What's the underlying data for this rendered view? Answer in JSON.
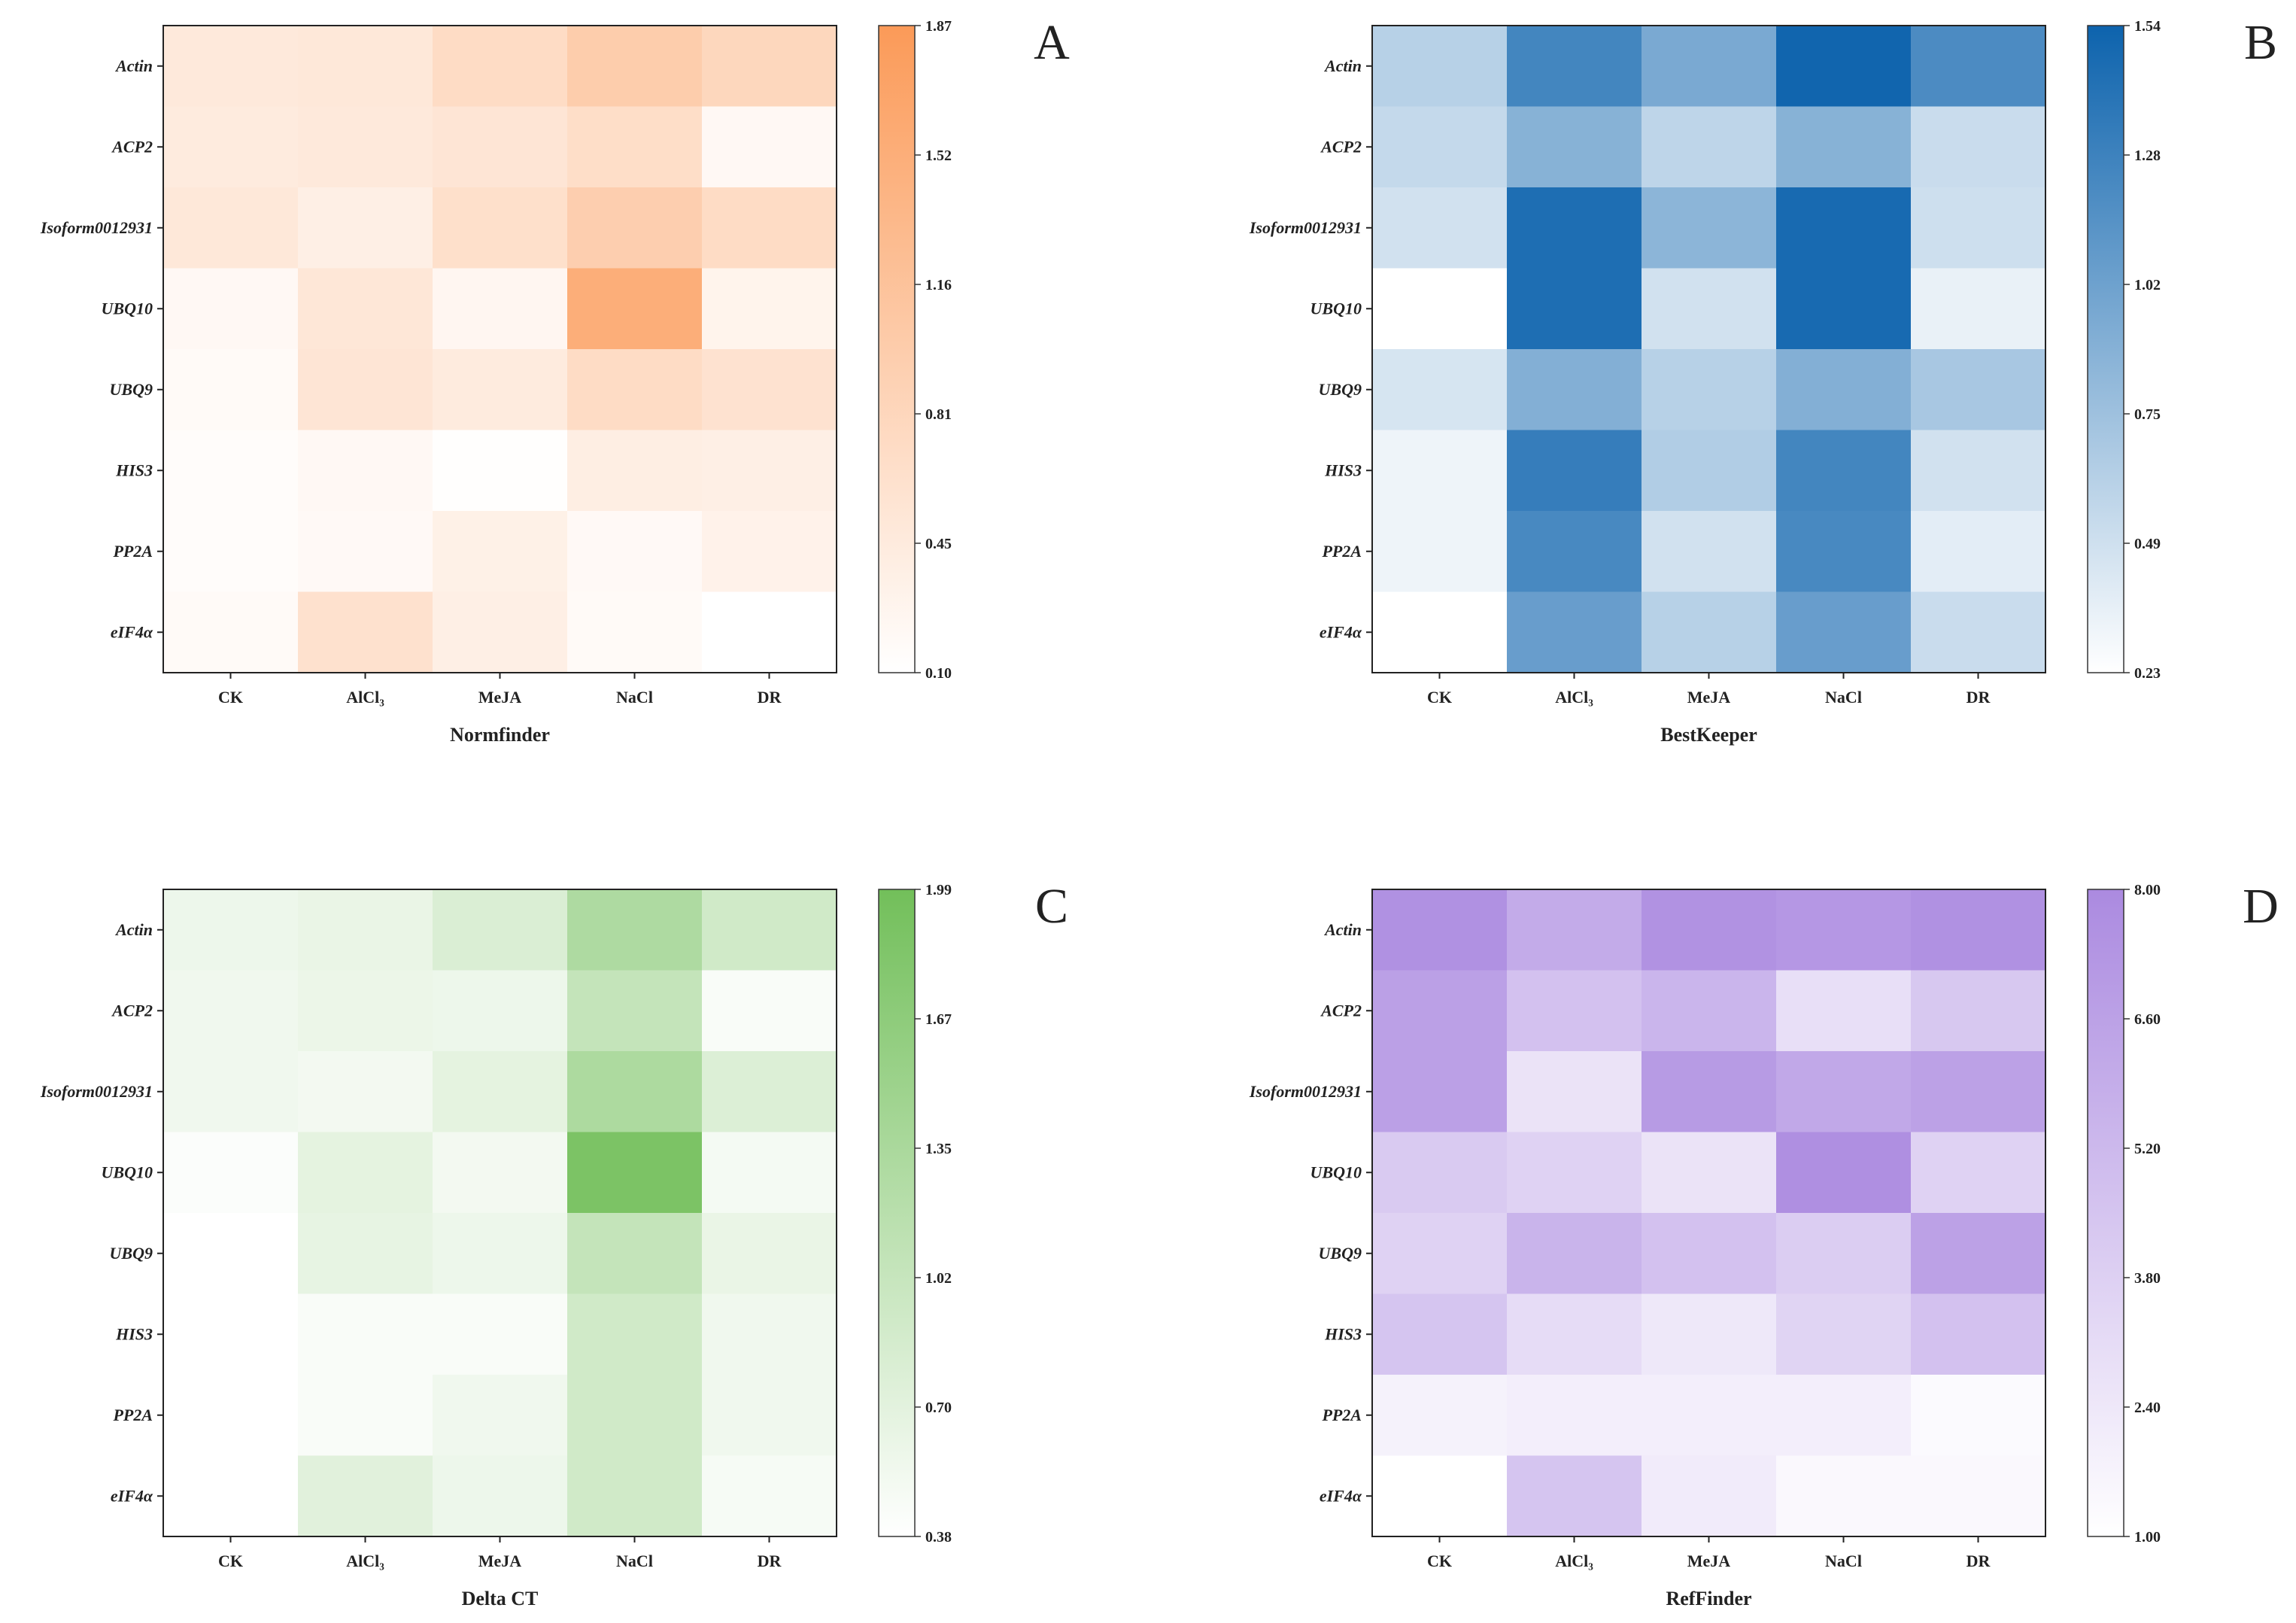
{
  "chart_data": [
    {
      "type": "heatmap",
      "panel_label": "A",
      "xlabel": "Normfinder",
      "rows": [
        "Actin",
        "ACP2",
        "Isoform0012931",
        "UBQ10",
        "UBQ9",
        "HIS3",
        "PP2A",
        "eIF4α"
      ],
      "columns": [
        "CK",
        "AlCl₃",
        "MeJA",
        "NaCl",
        "DR"
      ],
      "values": [
        [
          0.48,
          0.5,
          0.72,
          0.98,
          0.8
        ],
        [
          0.45,
          0.48,
          0.55,
          0.68,
          0.22
        ],
        [
          0.5,
          0.38,
          0.65,
          0.95,
          0.72
        ],
        [
          0.22,
          0.52,
          0.25,
          1.52,
          0.3
        ],
        [
          0.18,
          0.55,
          0.45,
          0.72,
          0.6
        ],
        [
          0.15,
          0.22,
          0.12,
          0.4,
          0.38
        ],
        [
          0.15,
          0.2,
          0.35,
          0.2,
          0.32
        ],
        [
          0.18,
          0.62,
          0.38,
          0.18,
          0.1
        ]
      ],
      "colorbar": {
        "min": 0.1,
        "max": 1.87,
        "ticks": [
          "1.87",
          "1.52",
          "1.16",
          "0.81",
          "0.45",
          "0.10"
        ],
        "color_low": "#ffffff",
        "color_high": "#fb9a58"
      }
    },
    {
      "type": "heatmap",
      "panel_label": "B",
      "xlabel": "BestKeeper",
      "rows": [
        "Actin",
        "ACP2",
        "Isoform0012931",
        "UBQ10",
        "UBQ9",
        "HIS3",
        "PP2A",
        "eIF4α"
      ],
      "columns": [
        "CK",
        "AlCl₃",
        "MeJA",
        "NaCl",
        "DR"
      ],
      "values": [
        [
          0.62,
          1.25,
          0.95,
          1.52,
          1.2
        ],
        [
          0.55,
          0.88,
          0.58,
          0.88,
          0.52
        ],
        [
          0.48,
          1.45,
          0.85,
          1.48,
          0.5
        ],
        [
          0.23,
          1.45,
          0.48,
          1.48,
          0.35
        ],
        [
          0.45,
          0.9,
          0.62,
          0.9,
          0.7
        ],
        [
          0.32,
          1.32,
          0.65,
          1.25,
          0.48
        ],
        [
          0.32,
          1.22,
          0.48,
          1.22,
          0.38
        ],
        [
          0.23,
          1.05,
          0.62,
          1.05,
          0.52
        ]
      ],
      "colorbar": {
        "min": 0.23,
        "max": 1.54,
        "ticks": [
          "1.54",
          "1.28",
          "1.02",
          "0.75",
          "0.49",
          "0.23"
        ],
        "color_low": "#ffffff",
        "color_high": "#0d63ad"
      }
    },
    {
      "type": "heatmap",
      "panel_label": "C",
      "xlabel": "Delta CT",
      "rows": [
        "Actin",
        "ACP2",
        "Isoform0012931",
        "UBQ10",
        "UBQ9",
        "HIS3",
        "PP2A",
        "eIF4α"
      ],
      "columns": [
        "CK",
        "AlCl₃",
        "MeJA",
        "NaCl",
        "DR"
      ],
      "values": [
        [
          0.58,
          0.62,
          0.8,
          1.3,
          0.92
        ],
        [
          0.55,
          0.6,
          0.58,
          1.05,
          0.45
        ],
        [
          0.55,
          0.52,
          0.68,
          1.32,
          0.78
        ],
        [
          0.42,
          0.68,
          0.52,
          1.88,
          0.5
        ],
        [
          0.38,
          0.65,
          0.58,
          1.05,
          0.62
        ],
        [
          0.38,
          0.45,
          0.45,
          0.92,
          0.55
        ],
        [
          0.38,
          0.45,
          0.55,
          0.92,
          0.55
        ],
        [
          0.38,
          0.72,
          0.58,
          0.92,
          0.48
        ]
      ],
      "colorbar": {
        "min": 0.38,
        "max": 1.99,
        "ticks": [
          "1.99",
          "1.67",
          "1.35",
          "1.02",
          "0.70",
          "0.38"
        ],
        "color_low": "#ffffff",
        "color_high": "#72bf5a"
      }
    },
    {
      "type": "heatmap",
      "panel_label": "D",
      "xlabel": "RefFinder",
      "rows": [
        "Actin",
        "ACP2",
        "Isoform0012931",
        "UBQ10",
        "UBQ9",
        "HIS3",
        "PP2A",
        "eIF4α"
      ],
      "columns": [
        "CK",
        "AlCl₃",
        "MeJA",
        "NaCl",
        "DR"
      ],
      "values": [
        [
          7.6,
          6.0,
          7.5,
          7.2,
          7.6
        ],
        [
          6.7,
          4.7,
          5.4,
          2.9,
          4.3
        ],
        [
          6.7,
          2.7,
          7.0,
          6.2,
          6.6
        ],
        [
          4.2,
          3.7,
          2.7,
          7.7,
          3.7
        ],
        [
          3.7,
          5.5,
          4.7,
          4.0,
          6.6
        ],
        [
          4.5,
          3.1,
          2.4,
          3.6,
          4.7
        ],
        [
          1.8,
          2.0,
          2.0,
          2.0,
          1.3
        ],
        [
          1.0,
          4.5,
          2.2,
          1.4,
          1.4
        ]
      ],
      "colorbar": {
        "min": 1.0,
        "max": 8.0,
        "ticks": [
          "8.00",
          "6.60",
          "5.20",
          "3.80",
          "2.40",
          "1.00"
        ],
        "color_low": "#ffffff",
        "color_high": "#ab8ae0"
      }
    }
  ]
}
